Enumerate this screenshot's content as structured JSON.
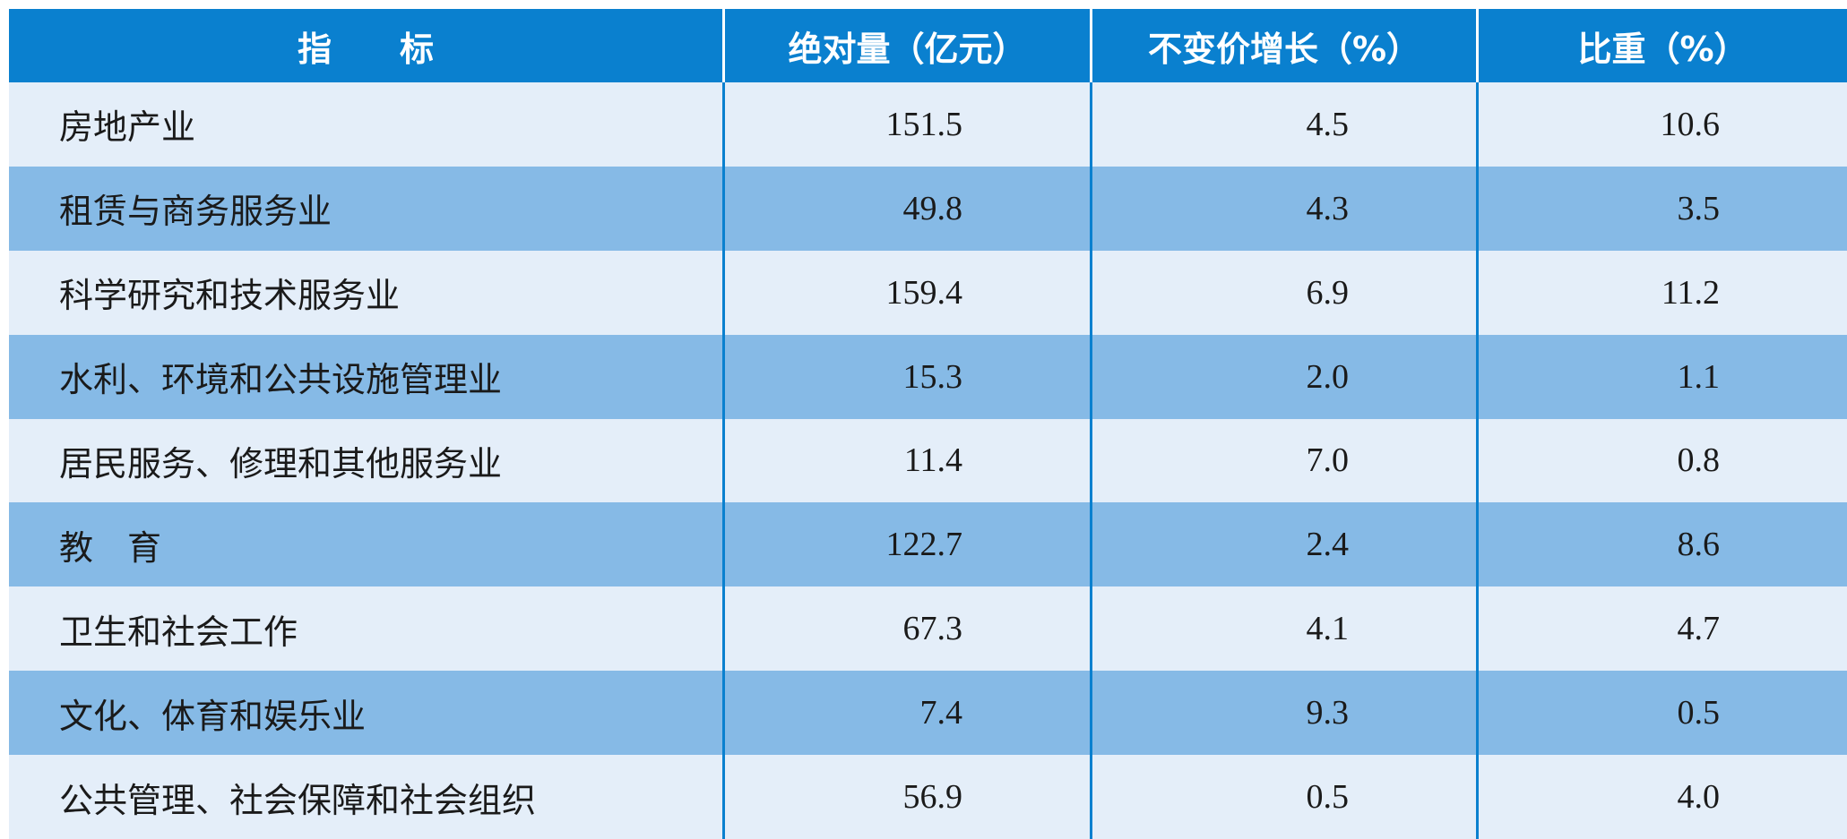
{
  "table": {
    "header": [
      "指　　标",
      "绝对量（亿元）",
      "不变价增长（%）",
      "比重（%）"
    ],
    "rows": [
      [
        "房地产业",
        "151.5",
        "4.5",
        "10.6"
      ],
      [
        "租赁与商务服务业",
        "49.8",
        "4.3",
        "3.5"
      ],
      [
        "科学研究和技术服务业",
        "159.4",
        "6.9",
        "11.2"
      ],
      [
        "水利、环境和公共设施管理业",
        "15.3",
        "2.0",
        "1.1"
      ],
      [
        "居民服务、修理和其他服务业",
        "11.4",
        "7.0",
        "0.8"
      ],
      [
        "教　育",
        "122.7",
        "2.4",
        "8.6"
      ],
      [
        "卫生和社会工作",
        "67.3",
        "4.1",
        "4.7"
      ],
      [
        "文化、体育和娱乐业",
        "7.4",
        "9.3",
        "0.5"
      ],
      [
        "公共管理、社会保障和社会组织",
        "56.9",
        "0.5",
        "4.0"
      ]
    ]
  }
}
